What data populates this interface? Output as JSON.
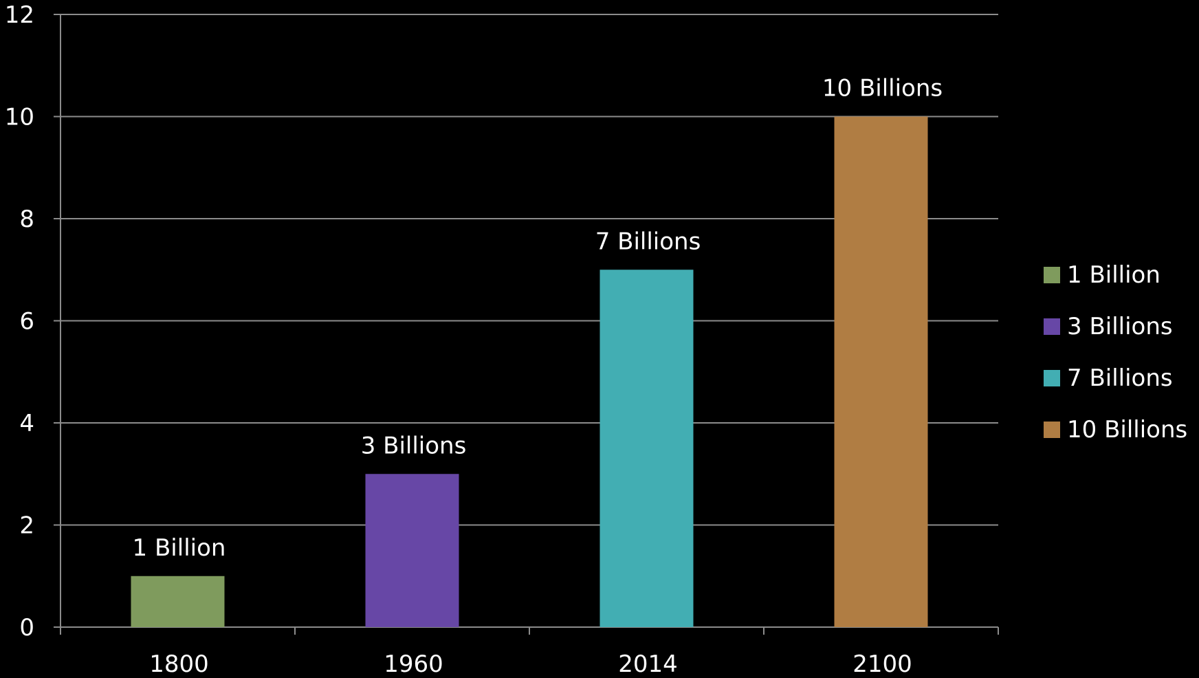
{
  "chart_data": {
    "type": "bar",
    "title": "",
    "xlabel": "",
    "ylabel": "",
    "ylim": [
      0,
      12
    ],
    "yticks": [
      0,
      2,
      4,
      6,
      8,
      10,
      12
    ],
    "categories": [
      "1800",
      "1960",
      "2014",
      "2100"
    ],
    "values": [
      1,
      3,
      7,
      10
    ],
    "data_labels": [
      "1 Billion",
      "3 Billions",
      "7 Billions",
      "10 Billions"
    ],
    "colors": [
      "#7f9b5d",
      "#6747a6",
      "#42aeb3",
      "#b07d43"
    ],
    "grid": true,
    "legend": {
      "placement": "right",
      "entries": [
        "1 Billion",
        "3 Billions",
        "7 Billions",
        "10 Billions"
      ]
    }
  }
}
